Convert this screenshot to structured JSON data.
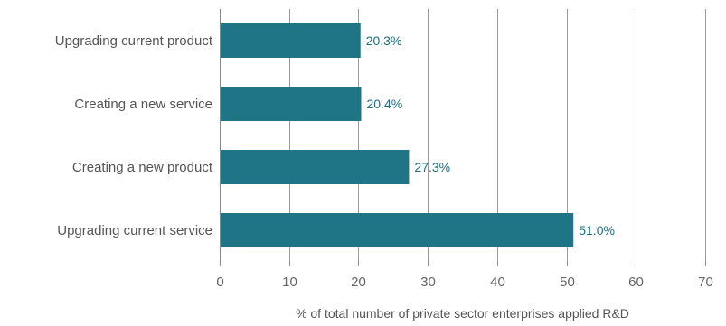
{
  "chart_data": {
    "type": "bar",
    "orientation": "horizontal",
    "categories": [
      "Upgrading current product",
      "Creating a new service",
      "Creating a new product",
      "Upgrading current service"
    ],
    "values": [
      20.3,
      20.4,
      27.3,
      51.0
    ],
    "value_labels": [
      "20.3%",
      "20.4%",
      "27.3%",
      "51.0%"
    ],
    "title": "",
    "xlabel": "% of total number of private sector enterprises applied R&D",
    "ylabel": "",
    "xlim": [
      0,
      70
    ],
    "xticks": [
      0,
      10,
      20,
      30,
      40,
      50,
      60,
      70
    ],
    "xtick_labels": [
      "0",
      "10",
      "20",
      "30",
      "40",
      "50",
      "60",
      "70"
    ],
    "grid": "vertical",
    "legend": "none",
    "colors": {
      "bar": "#1f7585",
      "data_label": "#1f6f80",
      "category_text": "#555555",
      "tick_text": "#666666",
      "gridline": "#9a9a9a",
      "axis": "#888888"
    }
  }
}
